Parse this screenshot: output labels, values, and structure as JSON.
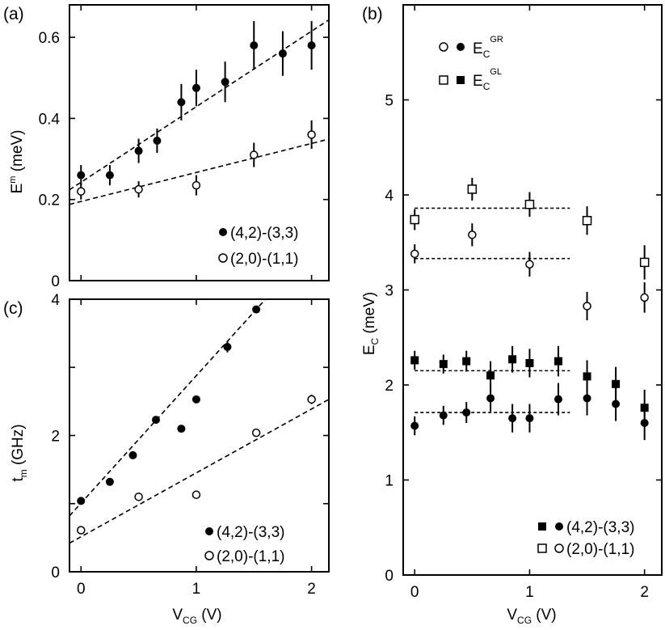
{
  "chart_data": [
    {
      "panel": "(a)",
      "type": "scatter",
      "ylabel": "E",
      "ylabel_sup": "m",
      "ylabel_unit": " (meV)",
      "xlim": [
        -0.1,
        2.15
      ],
      "ylim": [
        0,
        0.68
      ],
      "yticks": [
        0,
        0.2,
        0.4,
        0.6
      ],
      "ytick_labels": [
        "0",
        "0.2",
        "0.4",
        "0.6"
      ],
      "xticks": [
        0,
        1,
        2
      ],
      "series": [
        {
          "name": "(4,2)-(3,3)",
          "marker": "filled-circle",
          "x": [
            0,
            0.25,
            0.5,
            0.66,
            0.87,
            1.0,
            1.25,
            1.5,
            1.75,
            2.0
          ],
          "y": [
            0.26,
            0.26,
            0.32,
            0.345,
            0.44,
            0.475,
            0.49,
            0.58,
            0.56,
            0.58
          ],
          "err": [
            0.025,
            0.025,
            0.03,
            0.03,
            0.045,
            0.045,
            0.05,
            0.06,
            0.055,
            0.06
          ]
        },
        {
          "name": "(2,0)-(1,1)",
          "marker": "open-circle",
          "x": [
            0,
            0.5,
            1.0,
            1.5,
            2.0
          ],
          "y": [
            0.22,
            0.225,
            0.235,
            0.31,
            0.36
          ],
          "err": [
            0.02,
            0.02,
            0.025,
            0.03,
            0.035
          ]
        }
      ],
      "fits": [
        {
          "x": [
            -0.1,
            2.15
          ],
          "y": [
            0.224,
            0.643
          ]
        },
        {
          "x": [
            -0.1,
            2.15
          ],
          "y": [
            0.188,
            0.349
          ]
        }
      ],
      "legend": [
        "(4,2)-(3,3)",
        "(2,0)-(1,1)"
      ]
    },
    {
      "panel": "(b)",
      "type": "scatter",
      "ylabel": "E",
      "ylabel_sub": "C",
      "ylabel_unit": " (meV)",
      "xlabel": "V",
      "xlabel_sub": "CG",
      "xlabel_unit": " (V)",
      "xlim": [
        -0.1,
        2.15
      ],
      "ylim": [
        0,
        6
      ],
      "yticks": [
        0,
        1,
        2,
        3,
        4,
        5
      ],
      "ytick_labels": [
        "0",
        "1",
        "2",
        "3",
        "4",
        "5"
      ],
      "xticks": [
        0,
        1,
        2
      ],
      "xtick_labels": [
        "0",
        "1",
        "2"
      ],
      "series": [
        {
          "name": "E_C^GL (4,2)-(3,3)",
          "marker": "filled-square",
          "x": [
            0,
            0.25,
            0.45,
            0.66,
            0.85,
            1.0,
            1.25,
            1.5,
            1.75,
            2.0
          ],
          "y": [
            2.26,
            2.22,
            2.25,
            2.1,
            2.27,
            2.23,
            2.25,
            2.09,
            2.01,
            1.76
          ],
          "err": [
            0.1,
            0.1,
            0.11,
            0.15,
            0.14,
            0.15,
            0.16,
            0.17,
            0.18,
            0.19
          ]
        },
        {
          "name": "E_C^GR (4,2)-(3,3)",
          "marker": "filled-circle",
          "x": [
            0,
            0.25,
            0.45,
            0.66,
            0.85,
            1.0,
            1.25,
            1.5,
            1.75,
            2.0
          ],
          "y": [
            1.57,
            1.68,
            1.71,
            1.86,
            1.65,
            1.65,
            1.85,
            1.86,
            1.8,
            1.6
          ],
          "err": [
            0.1,
            0.1,
            0.11,
            0.14,
            0.15,
            0.15,
            0.17,
            0.18,
            0.18,
            0.18
          ]
        },
        {
          "name": "E_C^GL (2,0)-(1,1)",
          "marker": "open-square",
          "x": [
            0,
            0.5,
            1.0,
            1.5,
            2.0
          ],
          "y": [
            3.74,
            4.06,
            3.9,
            3.73,
            3.29
          ],
          "err": [
            0.11,
            0.12,
            0.13,
            0.15,
            0.18
          ]
        },
        {
          "name": "E_C^GR (2,0)-(1,1)",
          "marker": "open-circle",
          "x": [
            0,
            0.5,
            1.0,
            1.5,
            2.0
          ],
          "y": [
            3.38,
            3.58,
            3.27,
            2.83,
            2.92
          ],
          "err": [
            0.1,
            0.12,
            0.13,
            0.15,
            0.16
          ]
        }
      ],
      "hlines": [
        {
          "y": 3.86,
          "x": [
            0,
            1.35
          ]
        },
        {
          "y": 3.33,
          "x": [
            0,
            1.35
          ]
        },
        {
          "y": 2.15,
          "x": [
            0,
            1.35
          ]
        },
        {
          "y": 1.71,
          "x": [
            0,
            1.35
          ]
        }
      ],
      "legend_top": [
        {
          "base": "E",
          "sub": "C",
          "sup": "GR"
        },
        {
          "base": "E",
          "sub": "C",
          "sup": "GL"
        }
      ],
      "legend_bottom": [
        "(4,2)-(3,3)",
        "(2,0)-(1,1)"
      ]
    },
    {
      "panel": "(c)",
      "type": "scatter",
      "ylabel": "t",
      "ylabel_sub": "m",
      "ylabel_unit": " (GHz)",
      "xlabel": "V",
      "xlabel_sub": "CG",
      "xlabel_unit": " (V)",
      "xlim": [
        -0.1,
        2.15
      ],
      "ylim": [
        0,
        4
      ],
      "yticks": [
        0,
        1,
        2,
        3,
        4
      ],
      "ytick_labels": [
        "0",
        "",
        "2",
        "",
        "4"
      ],
      "xticks": [
        0,
        1,
        2
      ],
      "xtick_labels": [
        "0",
        "1",
        "2"
      ],
      "series": [
        {
          "name": "(4,2)-(3,3)",
          "marker": "filled-circle",
          "x": [
            0,
            0.25,
            0.45,
            0.65,
            0.87,
            1.0,
            1.27,
            1.52
          ],
          "y": [
            1.04,
            1.32,
            1.71,
            2.23,
            2.1,
            2.53,
            3.3,
            3.85
          ],
          "err": [
            0,
            0,
            0,
            0,
            0,
            0,
            0.08,
            0
          ]
        },
        {
          "name": "(2,0)-(1,1)",
          "marker": "open-circle",
          "x": [
            0,
            0.5,
            1.0,
            1.52,
            2.0
          ],
          "y": [
            0.61,
            1.1,
            1.13,
            2.04,
            2.53
          ],
          "err": [
            0,
            0.05,
            0,
            0.05,
            0.07
          ]
        }
      ],
      "fits": [
        {
          "x": [
            -0.1,
            1.6
          ],
          "y": [
            0.82,
            4.0
          ]
        },
        {
          "x": [
            -0.1,
            2.15
          ],
          "y": [
            0.42,
            2.53
          ]
        }
      ],
      "legend": [
        "(4,2)-(3,3)",
        "(2,0)-(1,1)"
      ]
    }
  ]
}
